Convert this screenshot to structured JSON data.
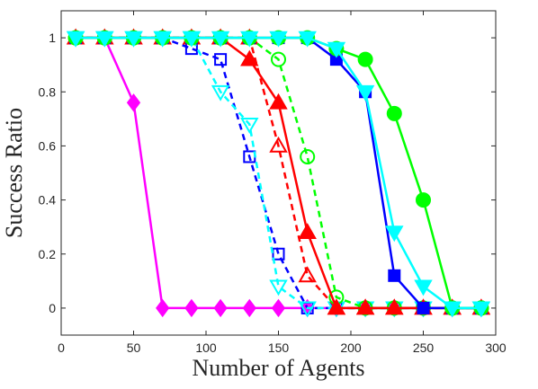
{
  "chart_data": {
    "type": "line",
    "xlabel": "Number of Agents",
    "ylabel": "Success Ratio",
    "xlim": [
      0,
      300
    ],
    "ylim": [
      -0.1,
      1.1
    ],
    "xticks": [
      0,
      50,
      100,
      150,
      200,
      250,
      300
    ],
    "yticks": [
      0,
      0.2,
      0.4,
      0.6,
      0.8,
      1
    ],
    "xtick_labels": [
      "0",
      "50",
      "100",
      "150",
      "200",
      "250",
      "300"
    ],
    "ytick_labels": [
      "0",
      "0.2",
      "0.4",
      "0.6",
      "0.8",
      "1"
    ],
    "grid": false,
    "legend": "none",
    "x": [
      10,
      30,
      50,
      70,
      90,
      110,
      130,
      150,
      170,
      190,
      210,
      230,
      250,
      270,
      290
    ],
    "series": [
      {
        "color": "#ff00ff",
        "line": "solid",
        "marker": "diamond",
        "filled": true,
        "values": [
          1,
          1,
          0.76,
          0,
          0,
          0,
          0,
          0,
          0,
          0,
          0,
          0,
          0,
          0,
          0
        ]
      },
      {
        "color": "#0000ff",
        "line": "dashed",
        "marker": "square",
        "filled": false,
        "values": [
          1,
          1,
          1,
          1,
          0.96,
          0.92,
          0.56,
          0.2,
          0,
          0,
          0,
          0,
          0,
          0,
          0
        ]
      },
      {
        "color": "#00ffff",
        "line": "dashed",
        "marker": "triangle-down",
        "filled": false,
        "values": [
          1,
          1,
          1,
          1,
          1,
          0.8,
          0.68,
          0.08,
          0,
          0,
          0,
          0,
          0,
          0,
          0
        ]
      },
      {
        "color": "#ff0000",
        "line": "dashed",
        "marker": "triangle-up",
        "filled": false,
        "values": [
          1,
          1,
          1,
          1,
          1,
          1,
          1,
          0.6,
          0.12,
          0,
          0,
          0,
          0,
          0,
          0
        ]
      },
      {
        "color": "#00ff00",
        "line": "dashed",
        "marker": "circle",
        "filled": false,
        "values": [
          1,
          1,
          1,
          1,
          1,
          1,
          1,
          0.92,
          0.56,
          0.04,
          0,
          0,
          0,
          0,
          0
        ]
      },
      {
        "color": "#ff0000",
        "line": "solid",
        "marker": "triangle-up",
        "filled": true,
        "values": [
          1,
          1,
          1,
          1,
          1,
          1,
          0.92,
          0.76,
          0.28,
          0,
          0,
          0,
          0,
          0,
          0
        ]
      },
      {
        "color": "#0000ff",
        "line": "solid",
        "marker": "square",
        "filled": true,
        "values": [
          1,
          1,
          1,
          1,
          1,
          1,
          1,
          1,
          1,
          0.92,
          0.8,
          0.12,
          0,
          0,
          0
        ]
      },
      {
        "color": "#00ff00",
        "line": "solid",
        "marker": "circle",
        "filled": true,
        "values": [
          1,
          1,
          1,
          1,
          1,
          1,
          1,
          1,
          1,
          0.96,
          0.92,
          0.72,
          0.4,
          0,
          0
        ]
      },
      {
        "color": "#00ffff",
        "line": "solid",
        "marker": "triangle-down",
        "filled": true,
        "values": [
          1,
          1,
          1,
          1,
          1,
          1,
          1,
          1,
          1,
          0.96,
          0.8,
          0.28,
          0.08,
          0,
          0
        ]
      }
    ]
  }
}
